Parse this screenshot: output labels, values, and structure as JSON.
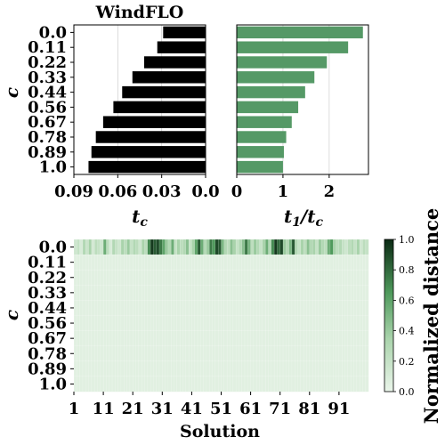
{
  "colors": {
    "bar_black": "#000000",
    "bar_green": "#559966",
    "heat_low": "#eaf5ea",
    "heat_high": "#0b2a14",
    "grid": "#d3d3d3"
  },
  "chart_data": [
    {
      "type": "bar",
      "orientation": "horizontal",
      "title": "WindFLO",
      "categories": [
        "0.0",
        "0.11",
        "0.22",
        "0.33",
        "0.44",
        "0.56",
        "0.67",
        "0.78",
        "0.89",
        "1.0"
      ],
      "values": [
        0.029,
        0.033,
        0.042,
        0.05,
        0.057,
        0.063,
        0.07,
        0.075,
        0.078,
        0.08
      ],
      "xlabel": "t_c",
      "ylabel": "c",
      "xlim": [
        0.09,
        0.0
      ],
      "xticks": [
        "0.09",
        "0.06",
        "0.03",
        "0.0"
      ],
      "x_inverted": true,
      "grid": "vertical"
    },
    {
      "type": "bar",
      "orientation": "horizontal",
      "categories": [
        "0.0",
        "0.11",
        "0.22",
        "0.33",
        "0.44",
        "0.56",
        "0.67",
        "0.78",
        "0.89",
        "1.0"
      ],
      "values": [
        2.73,
        2.41,
        1.95,
        1.68,
        1.48,
        1.33,
        1.19,
        1.07,
        1.02,
        1.0
      ],
      "xlabel": "t_1/t_c",
      "xlim": [
        0,
        2.85
      ],
      "xticks": [
        "0",
        "1",
        "2"
      ],
      "grid": "vertical"
    },
    {
      "type": "heatmap",
      "xlabel": "Solution",
      "ylabel": "c",
      "rows": [
        "0.0",
        "0.11",
        "0.22",
        "0.33",
        "0.44",
        "0.56",
        "0.67",
        "0.78",
        "0.89",
        "1.0"
      ],
      "xticks": [
        "1",
        "11",
        "21",
        "31",
        "41",
        "51",
        "61",
        "71",
        "81",
        "91"
      ],
      "n_solutions": 100,
      "row0_values": [
        0.15,
        0.2,
        0.1,
        0.3,
        0.18,
        0.35,
        0.12,
        0.25,
        0.2,
        0.15,
        0.55,
        0.25,
        0.1,
        0.3,
        0.2,
        0.15,
        0.35,
        0.25,
        0.4,
        0.2,
        0.3,
        0.25,
        0.15,
        0.35,
        0.25,
        0.7,
        0.95,
        0.85,
        0.9,
        0.75,
        0.6,
        0.4,
        0.3,
        0.55,
        0.2,
        0.35,
        0.25,
        0.3,
        0.45,
        0.2,
        0.35,
        0.6,
        0.85,
        0.55,
        0.3,
        0.4,
        0.75,
        0.65,
        0.9,
        0.85,
        0.5,
        0.3,
        0.25,
        0.45,
        0.35,
        0.2,
        0.3,
        0.45,
        0.75,
        0.5,
        0.25,
        0.4,
        0.3,
        0.2,
        0.35,
        0.55,
        0.3,
        0.7,
        0.95,
        0.8,
        0.9,
        0.4,
        0.3,
        0.5,
        0.85,
        0.3,
        0.2,
        0.35,
        0.25,
        0.45,
        0.3,
        0.35,
        0.2,
        0.4,
        0.3,
        0.25,
        0.55,
        0.65,
        0.35,
        0.25,
        0.3,
        0.2,
        0.15,
        0.25,
        0.3,
        0.2,
        0.35,
        0.15,
        0.25,
        0.2
      ],
      "other_rows_value": 0.05,
      "colorbar": {
        "label": "Normalized distance",
        "range": [
          0.0,
          1.0
        ],
        "ticks": [
          "0.0",
          "0.2",
          "0.4",
          "0.6",
          "0.8",
          "1.0"
        ]
      }
    }
  ]
}
